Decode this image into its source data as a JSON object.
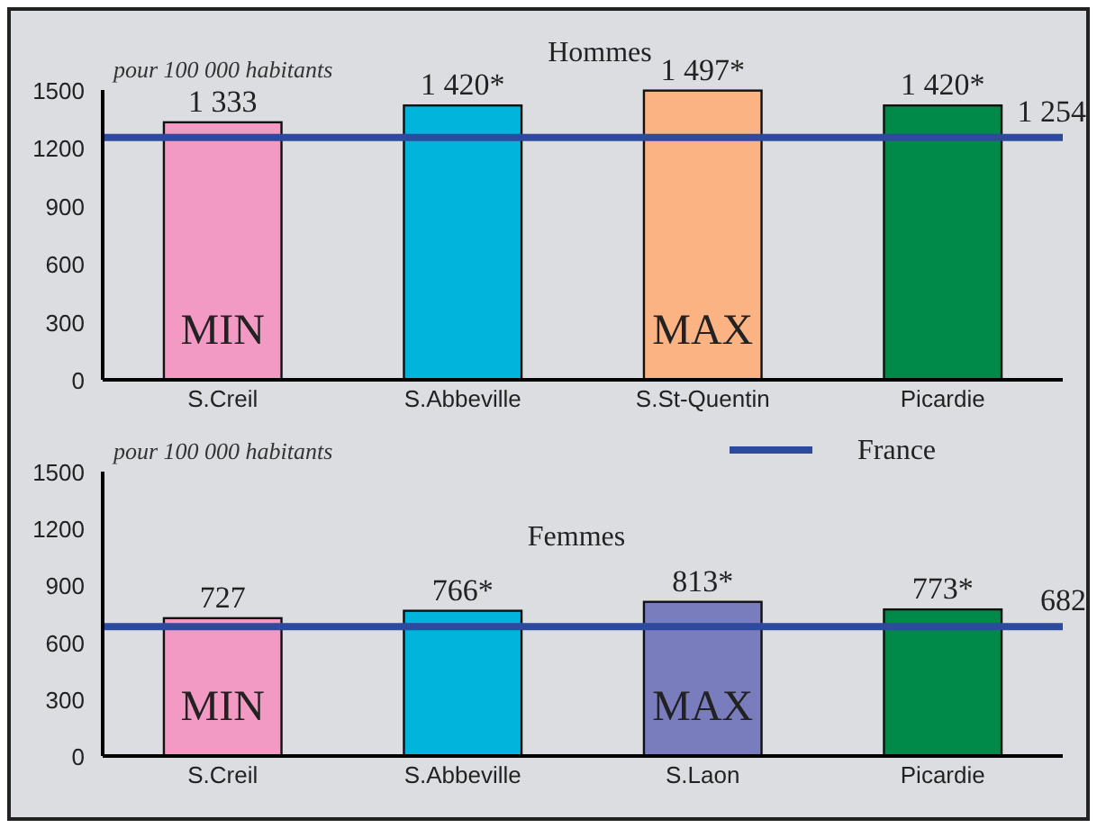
{
  "chart_data": [
    {
      "type": "bar",
      "title": "Hommes",
      "ylabel": "pour 100 000 habitants",
      "categories": [
        "S.Creil",
        "S.Abbeville",
        "S.St-Quentin",
        "Picardie"
      ],
      "values": [
        1333,
        1420,
        1497,
        1420
      ],
      "value_labels": [
        "1 333",
        "1 420*",
        "1 497*",
        "1 420*"
      ],
      "colors": [
        "#f29ac3",
        "#00b4dc",
        "#fbb383",
        "#008a4a"
      ],
      "ylim": [
        0,
        1500
      ],
      "yticks": [
        0,
        300,
        600,
        900,
        1200,
        1500
      ],
      "ref_lines": [
        {
          "axis": "y",
          "value": 1254,
          "label": "1 254",
          "color": "#2e4a9e"
        }
      ],
      "annotations": [
        "MIN",
        "MAX"
      ],
      "grid": false,
      "legend": false
    },
    {
      "type": "bar",
      "title": "Femmes",
      "ylabel": "pour 100 000 habitants",
      "categories": [
        "S.Creil",
        "S.Abbeville",
        "S.Laon",
        "Picardie"
      ],
      "values": [
        727,
        766,
        813,
        773
      ],
      "value_labels": [
        "727",
        "766*",
        "813*",
        "773*"
      ],
      "colors": [
        "#f29ac3",
        "#00b4dc",
        "#7a7dbd",
        "#008a4a"
      ],
      "ylim": [
        0,
        1500
      ],
      "yticks": [
        0,
        300,
        600,
        900,
        1200,
        1500
      ],
      "ref_lines": [
        {
          "axis": "y",
          "value": 682,
          "label": "France",
          "color": "#2e4a9e"
        }
      ],
      "annotations": [
        "MIN",
        "MAX",
        {
          "text": "682",
          "y": 682
        }
      ],
      "grid": false,
      "legend": "top right"
    }
  ]
}
